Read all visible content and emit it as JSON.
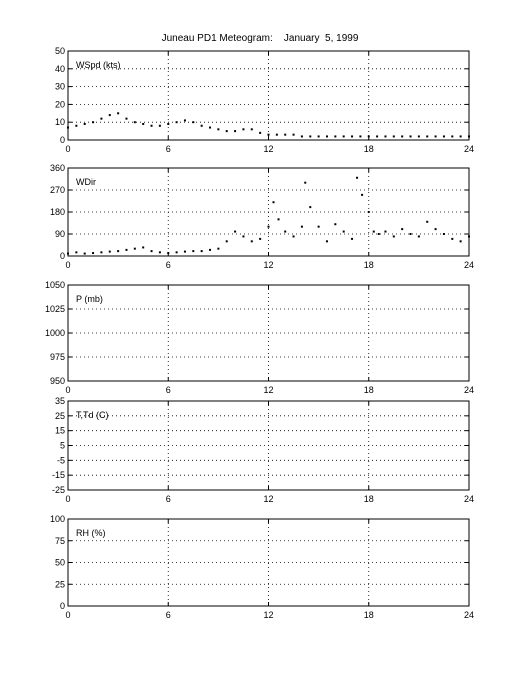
{
  "figure": {
    "title": "Juneau PD1 Meteogram:    January  5, 1999"
  },
  "colors": {
    "background": "#ffffff",
    "ink": "#000000"
  },
  "chart_data": [
    {
      "type": "scatter",
      "label": "WSpd (kts)",
      "xlim": [
        0,
        24
      ],
      "xticks": [
        "0",
        "6",
        "12",
        "18",
        "24"
      ],
      "ylim": [
        0,
        50
      ],
      "yticks": [
        "0",
        "10",
        "20",
        "30",
        "40",
        "50"
      ],
      "grid": true,
      "x": [
        0,
        0.5,
        1,
        1.5,
        2,
        2.5,
        3,
        3.5,
        4,
        4.5,
        5,
        5.5,
        6,
        6.5,
        7,
        7.5,
        8,
        8.5,
        9,
        9.5,
        10,
        10.5,
        11,
        11.5,
        12,
        12.5,
        13,
        13.5,
        14,
        14.5,
        15,
        15.5,
        16,
        16.5,
        17,
        17.5,
        18,
        18.5,
        19,
        19.5,
        20,
        20.5,
        21,
        21.5,
        22,
        22.5,
        23,
        23.5,
        24
      ],
      "values": [
        7,
        8,
        9,
        10,
        12,
        14,
        15,
        12,
        10,
        9,
        8,
        8,
        9,
        10,
        11,
        10,
        8,
        7,
        6,
        5,
        5,
        6,
        6,
        4,
        3,
        3,
        3,
        3,
        2,
        2,
        2,
        2,
        2,
        2,
        2,
        2,
        2,
        2,
        2,
        2,
        2,
        2,
        2,
        2,
        2,
        2,
        2,
        2,
        2
      ]
    },
    {
      "type": "scatter",
      "label": "WDir",
      "xlim": [
        0,
        24
      ],
      "xticks": [
        "0",
        "6",
        "12",
        "18",
        "24"
      ],
      "ylim": [
        0,
        360
      ],
      "yticks": [
        "0",
        "90",
        "180",
        "270",
        "360"
      ],
      "grid": true,
      "x": [
        0,
        0.5,
        1,
        1.5,
        2,
        2.5,
        3,
        3.5,
        4,
        4.5,
        5,
        5.5,
        6,
        6.5,
        7,
        7.5,
        8,
        8.5,
        9,
        9.5,
        10,
        10.5,
        11,
        11.5,
        12,
        12.3,
        12.6,
        13,
        13.5,
        14,
        14.2,
        14.5,
        15,
        15.5,
        16,
        16.5,
        17,
        17.3,
        17.6,
        18,
        18.3,
        18.6,
        19,
        19.5,
        20,
        20.5,
        21,
        21.5,
        22,
        22.5,
        23,
        23.5,
        24
      ],
      "values": [
        10,
        15,
        10,
        12,
        15,
        18,
        20,
        25,
        30,
        35,
        20,
        15,
        12,
        15,
        18,
        20,
        20,
        25,
        30,
        60,
        100,
        80,
        60,
        70,
        120,
        220,
        150,
        100,
        80,
        120,
        300,
        200,
        120,
        60,
        130,
        100,
        70,
        320,
        250,
        180,
        100,
        90,
        100,
        80,
        110,
        90,
        80,
        140,
        110,
        90,
        70,
        60,
        80
      ]
    },
    {
      "type": "scatter",
      "label": "P (mb)",
      "xlim": [
        0,
        24
      ],
      "xticks": [
        "0",
        "6",
        "12",
        "18",
        "24"
      ],
      "ylim": [
        950,
        1050
      ],
      "yticks": [
        "950",
        "975",
        "1000",
        "1025",
        "1050"
      ],
      "grid": true,
      "x": [],
      "values": []
    },
    {
      "type": "scatter",
      "label": "T,Td (C)",
      "xlim": [
        0,
        24
      ],
      "xticks": [
        "0",
        "6",
        "12",
        "18",
        "24"
      ],
      "ylim": [
        -25,
        35
      ],
      "yticks": [
        "-25",
        "-15",
        "-5",
        "5",
        "15",
        "25",
        "35"
      ],
      "grid": true,
      "x": [],
      "values": []
    },
    {
      "type": "scatter",
      "label": "RH (%)",
      "xlim": [
        0,
        24
      ],
      "xticks": [
        "0",
        "6",
        "12",
        "18",
        "24"
      ],
      "ylim": [
        0,
        100
      ],
      "yticks": [
        "0",
        "25",
        "50",
        "75",
        "100"
      ],
      "grid": true,
      "x": [],
      "values": []
    }
  ]
}
